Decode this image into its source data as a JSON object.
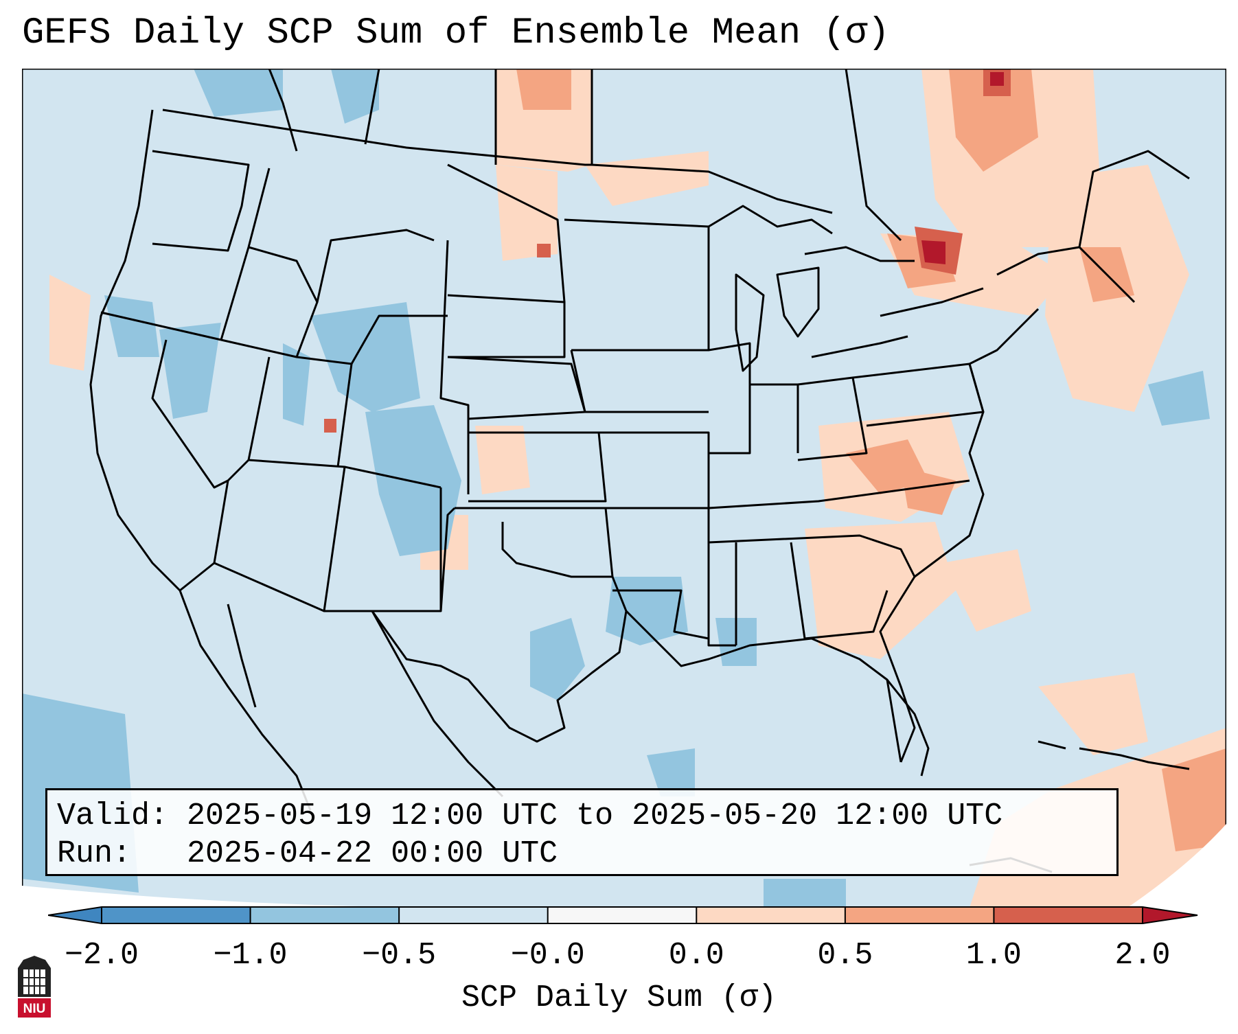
{
  "title": "GEFS Daily SCP Sum of Ensemble Mean (σ)",
  "info": {
    "valid_line": "Valid: 2025-05-19 12:00 UTC to 2025-05-20 12:00 UTC",
    "run_line": "Run:   2025-04-22 00:00 UTC"
  },
  "colorbar": {
    "label": "SCP Daily Sum (σ)",
    "tick_labels": [
      "−2.0",
      "−1.0",
      "−0.5",
      "−0.0",
      "0.0",
      "0.5",
      "1.0",
      "2.0"
    ],
    "extend": "both",
    "bins": [
      {
        "range": "< -2.0",
        "color": "#3f86c0"
      },
      {
        "range": "-2.0 to -1.0",
        "color": "#4f94c8"
      },
      {
        "range": "-1.0 to -0.5",
        "color": "#93c5df"
      },
      {
        "range": "-0.5 to -0.0",
        "color": "#d2e5f0"
      },
      {
        "range": "-0.0 to 0.0",
        "color": "#f7f7f7"
      },
      {
        "range": "0.0 to 0.5",
        "color": "#fdd9c3"
      },
      {
        "range": "0.5 to 1.0",
        "color": "#f4a582"
      },
      {
        "range": "1.0 to 2.0",
        "color": "#d6604d"
      },
      {
        "range": "> 2.0",
        "color": "#b2182b"
      }
    ]
  },
  "map": {
    "background_color": "#d2e5f0",
    "border_color": "#000000",
    "anomalies": [
      {
        "region": "Wisconsin / Ontario border (Lake Superior east)",
        "level": "> 2.0"
      },
      {
        "region": "Ontario / Quebec",
        "level": "0.0 to 0.5"
      },
      {
        "region": "Ohio Valley / Kentucky / West Virginia",
        "level": "0.5 to 1.0"
      },
      {
        "region": "Tennessee / Alabama / Georgia",
        "level": "0.0 to 0.5"
      },
      {
        "region": "Northern Plains (North Dakota, Montana)",
        "level": "0.0 to 0.5"
      },
      {
        "region": "Caribbean / West Atlantic",
        "level": "0.0 to 0.5"
      },
      {
        "region": "Utah / Colorado / Wyoming",
        "level": "-1.0 to -0.5"
      },
      {
        "region": "Central Texas / Louisiana",
        "level": "-1.0 to -0.5"
      },
      {
        "region": "Eastern Pacific off Baja",
        "level": "-1.0 to -0.5"
      }
    ]
  },
  "logo": {
    "text": "NIU",
    "icon": "niu-logo-icon"
  }
}
